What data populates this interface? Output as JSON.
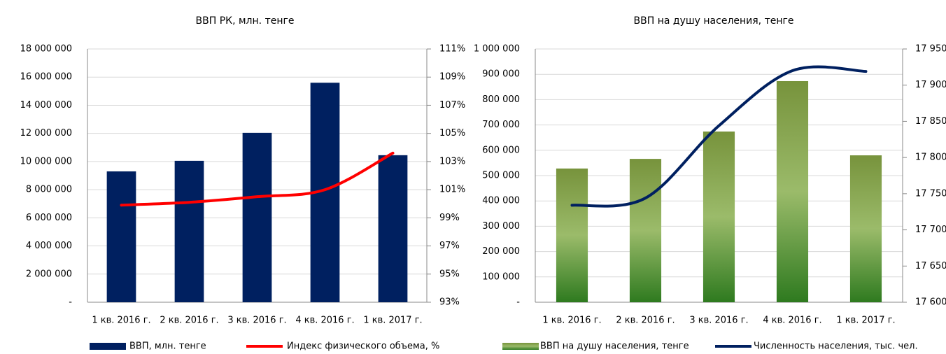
{
  "chart_data": [
    {
      "type": "bar",
      "title": "ВВП РК, млн. тенге",
      "categories": [
        "1 кв. 2016 г.",
        "2 кв. 2016 г.",
        "3 кв. 2016 г.",
        "4 кв. 2016 г.",
        "1 кв. 2017 г."
      ],
      "series": [
        {
          "name": "ВВП, млн. тенге",
          "color": "#002060",
          "values": [
            9300000,
            10050000,
            12040000,
            15600000,
            10450000
          ]
        },
        {
          "name": "Индекс физического объема, %",
          "type": "line",
          "axis": "y2",
          "color": "#ff0000",
          "values": [
            99.9,
            100.1,
            100.5,
            101.0,
            103.6
          ]
        }
      ],
      "ylim": [
        0,
        18000000
      ],
      "yticks": [
        {
          "value": 0,
          "label": "-"
        },
        {
          "value": 2000000,
          "label": "2 000 000"
        },
        {
          "value": 4000000,
          "label": "4 000 000"
        },
        {
          "value": 6000000,
          "label": "6 000 000"
        },
        {
          "value": 8000000,
          "label": "8 000 000"
        },
        {
          "value": 10000000,
          "label": "10 000 000"
        },
        {
          "value": 12000000,
          "label": "12 000 000"
        },
        {
          "value": 14000000,
          "label": "14 000 000"
        },
        {
          "value": 16000000,
          "label": "16 000 000"
        },
        {
          "value": 18000000,
          "label": "18 000 000"
        }
      ],
      "y2lim": [
        93,
        111
      ],
      "y2ticks": [
        {
          "value": 93,
          "label": "93%"
        },
        {
          "value": 95,
          "label": "95%"
        },
        {
          "value": 97,
          "label": "97%"
        },
        {
          "value": 99,
          "label": "99%"
        },
        {
          "value": 101,
          "label": "101%"
        },
        {
          "value": 103,
          "label": "103%"
        },
        {
          "value": 105,
          "label": "105%"
        },
        {
          "value": 107,
          "label": "107%"
        },
        {
          "value": 109,
          "label": "109%"
        },
        {
          "value": 111,
          "label": "111%"
        }
      ],
      "grid": true
    },
    {
      "type": "bar",
      "title": "ВВП на душу населения, тенге",
      "categories": [
        "1 кв. 2016 г.",
        "2 кв. 2016 г.",
        "3 кв. 2016 г.",
        "4 кв. 2016 г.",
        "1 кв. 2017 г."
      ],
      "series": [
        {
          "name": "ВВП на душу населения, тенге",
          "color": "#77933c",
          "values": [
            528000,
            566000,
            674000,
            873000,
            580000
          ]
        },
        {
          "name": "Численность населения, тыс. чел.",
          "type": "line",
          "axis": "y2",
          "color": "#002060",
          "values": [
            17734,
            17744,
            17844,
            17920,
            17919
          ]
        }
      ],
      "ylim": [
        0,
        1000000
      ],
      "yticks": [
        {
          "value": 0,
          "label": "-"
        },
        {
          "value": 100000,
          "label": "100 000"
        },
        {
          "value": 200000,
          "label": "200 000"
        },
        {
          "value": 300000,
          "label": "300 000"
        },
        {
          "value": 400000,
          "label": "400 000"
        },
        {
          "value": 500000,
          "label": "500 000"
        },
        {
          "value": 600000,
          "label": "600 000"
        },
        {
          "value": 700000,
          "label": "700 000"
        },
        {
          "value": 800000,
          "label": "800 000"
        },
        {
          "value": 900000,
          "label": "900 000"
        },
        {
          "value": 1000000,
          "label": "1 000 000"
        }
      ],
      "y2lim": [
        17600,
        17950
      ],
      "y2ticks": [
        {
          "value": 17600,
          "label": "17 600"
        },
        {
          "value": 17650,
          "label": "17 650"
        },
        {
          "value": 17700,
          "label": "17 700"
        },
        {
          "value": 17750,
          "label": "17 750"
        },
        {
          "value": 17800,
          "label": "17 800"
        },
        {
          "value": 17850,
          "label": "17 850"
        },
        {
          "value": 17900,
          "label": "17 900"
        },
        {
          "value": 17950,
          "label": "17 950"
        }
      ],
      "grid": true
    }
  ]
}
